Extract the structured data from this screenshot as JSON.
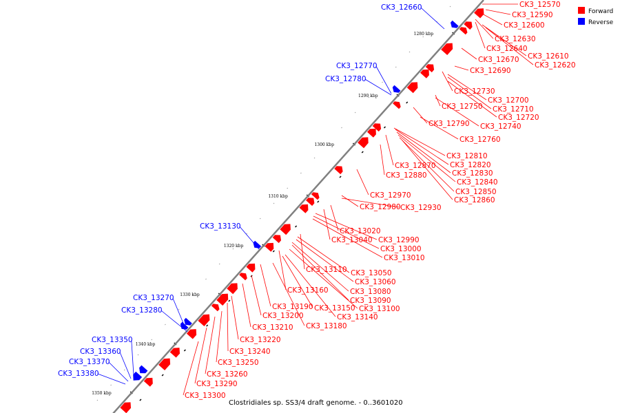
{
  "caption": "Clostridiales sp. SS3/4 draft genome. - 0..3601020",
  "legend": [
    {
      "label": "Forward",
      "color": "#ff0000"
    },
    {
      "label": "Reverse",
      "color": "#0000ff"
    }
  ],
  "backbone_color": "#808080",
  "ticks": [
    {
      "kbp": 1280,
      "label": "1280 kbp"
    },
    {
      "kbp": 1290,
      "label": "1290 kbp"
    },
    {
      "kbp": 1300,
      "label": "1300 kbp"
    },
    {
      "kbp": 1310,
      "label": "1310 kbp"
    },
    {
      "kbp": 1320,
      "label": "1320 kbp"
    },
    {
      "kbp": 1330,
      "label": "1330 kbp"
    },
    {
      "kbp": 1340,
      "label": "1340 kbp"
    },
    {
      "kbp": 1350,
      "label": "1350 kbp"
    }
  ],
  "forward_labels": [
    "CK3_12570",
    "CK3_12590",
    "CK3_12600",
    "CK3_12630",
    "CK3_12640",
    "CK3_12610",
    "CK3_12620",
    "CK3_12670",
    "CK3_12690",
    "CK3_12730",
    "CK3_12700",
    "CK3_12710",
    "CK3_12720",
    "CK3_12750",
    "CK3_12740",
    "CK3_12790",
    "CK3_12760",
    "CK3_12810",
    "CK3_12820",
    "CK3_12870",
    "CK3_12830",
    "CK3_12880",
    "CK3_12840",
    "CK3_12850",
    "CK3_12860",
    "CK3_12970",
    "CK3_12980",
    "CK3_12930",
    "CK3_13020",
    "CK3_13040",
    "CK3_12990",
    "CK3_13000",
    "CK3_13010",
    "CK3_13110",
    "CK3_13050",
    "CK3_13060",
    "CK3_13160",
    "CK3_13080",
    "CK3_13090",
    "CK3_13190",
    "CK3_13150",
    "CK3_13100",
    "CK3_13200",
    "CK3_13140",
    "CK3_13210",
    "CK3_13180",
    "CK3_13220",
    "CK3_13240",
    "CK3_13250",
    "CK3_13260",
    "CK3_13290",
    "CK3_13300"
  ],
  "reverse_labels": [
    "CK3_12660",
    "CK3_12770",
    "CK3_12780",
    "CK3_13130",
    "CK3_13270",
    "CK3_13280",
    "CK3_13350",
    "CK3_13360",
    "CK3_13370",
    "CK3_13380"
  ]
}
